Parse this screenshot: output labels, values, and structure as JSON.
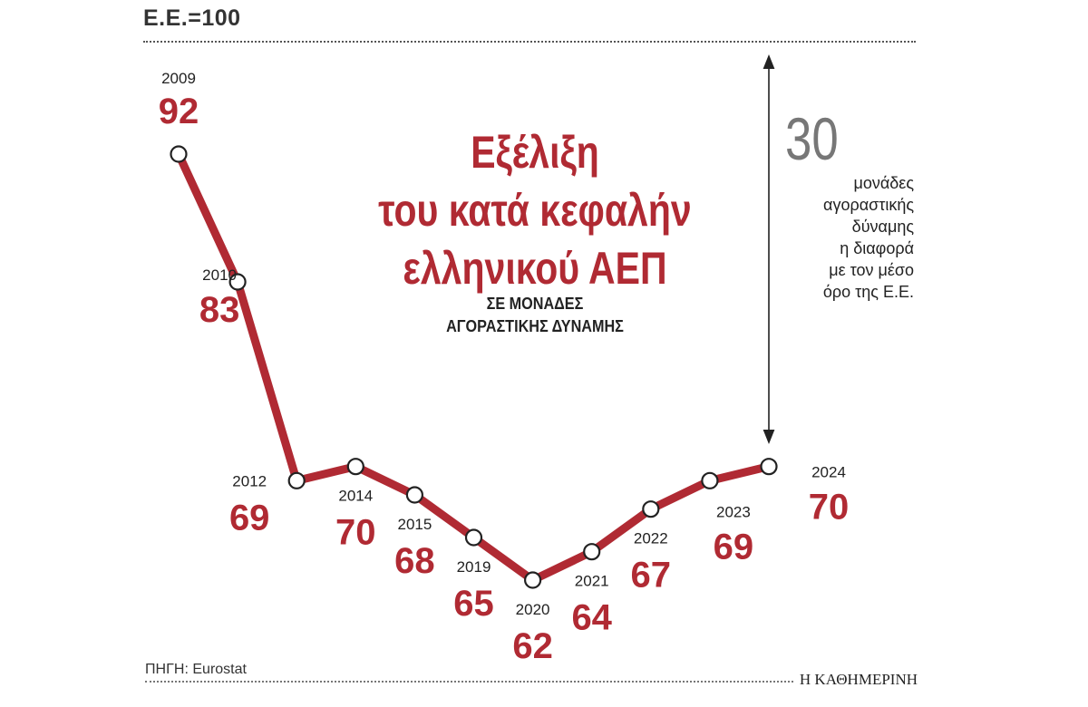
{
  "header": {
    "index_label": "Ε.Ε.=100"
  },
  "chart_data": {
    "type": "line",
    "title": "Εξέλιξη του κατά κεφαλήν ελληνικού ΑΕΠ",
    "title_lines": [
      "Εξέλιξη",
      "του κατά κεφαλήν",
      "ελληνικού ΑΕΠ"
    ],
    "subtitle_lines": [
      "ΣΕ ΜΟΝΑΔΕΣ",
      "ΑΓΟΡΑΣΤΙΚΗΣ ΔΥΝΑΜΗΣ"
    ],
    "xlabel": "",
    "ylabel": "",
    "ylim": [
      62,
      92
    ],
    "grid": false,
    "categories": [
      "2009",
      "2010",
      "2012",
      "2014",
      "2015",
      "2019",
      "2020",
      "2021",
      "2022",
      "2023",
      "2024"
    ],
    "series": [
      {
        "values": [
          92,
          83,
          69,
          70,
          68,
          65,
          62,
          64,
          67,
          69,
          70
        ]
      }
    ],
    "annotation": {
      "number": "30",
      "lines": [
        "μονάδες",
        "αγοραστικής",
        "δύναμης",
        "η διαφορά",
        "με τον μέσο",
        "όρο της Ε.Ε."
      ]
    },
    "colors": {
      "line": "#b02a33",
      "marker_fill": "#ffffff",
      "marker_stroke": "#222222",
      "value_text": "#b02a33"
    }
  },
  "footer": {
    "source": "ΠΗΓΗ: Eurostat",
    "brand": "Η ΚΑΘΗΜΕΡΙΝΗ"
  }
}
